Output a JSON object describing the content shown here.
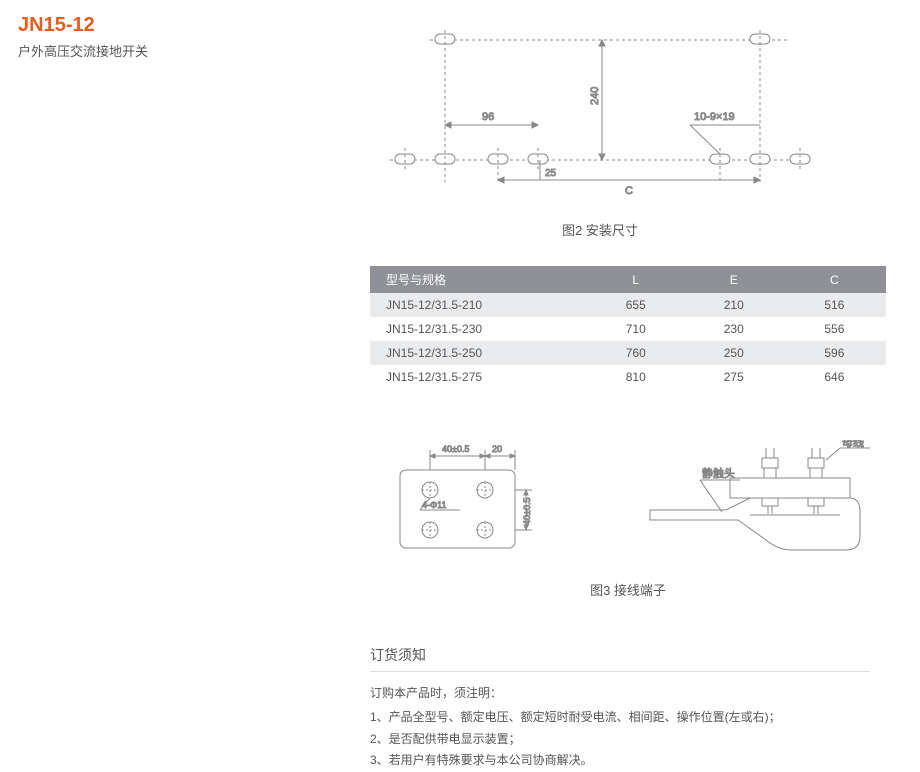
{
  "header": {
    "title": "JN15-12",
    "title_color": "#e85c1f",
    "subtitle": "户外高压交流接地开关"
  },
  "diagram2": {
    "caption": "图2 安装尺寸",
    "dim_96": "96",
    "dim_240": "240",
    "dim_25": "25",
    "dim_C": "C",
    "slot_label": "10-9×19",
    "stroke": "#888888",
    "text_color": "#666666"
  },
  "table": {
    "header_bg": "#8f9197",
    "row_alt_bg": "#eaebed",
    "row_bg": "#ffffff",
    "columns": [
      "型号与规格",
      "L",
      "E",
      "C"
    ],
    "col_widths": [
      "42%",
      "19%",
      "19%",
      "20%"
    ],
    "rows": [
      [
        "JN15-12/31.5-210",
        "655",
        "210",
        "516"
      ],
      [
        "JN15-12/31.5-230",
        "710",
        "230",
        "556"
      ],
      [
        "JN15-12/31.5-250",
        "760",
        "250",
        "596"
      ],
      [
        "JN15-12/31.5-275",
        "810",
        "275",
        "646"
      ]
    ]
  },
  "diagram3": {
    "caption": "图3 接线端子",
    "dim_40a": "40±0.5",
    "dim_20": "20",
    "dim_40b": "40±0.5",
    "hole_label": "4-Φ11",
    "label_busbar": "母线",
    "label_contact": "静触头",
    "stroke": "#888888",
    "text_color": "#666666"
  },
  "order": {
    "title": "订货须知",
    "intro": "订购本产品时，须注明：",
    "items": [
      "1、产品全型号、额定电压、额定短时耐受电流、相间距、操作位置(左或右)；",
      "2、是否配供带电显示装置；",
      "3、若用户有特殊要求与本公司协商解决。"
    ]
  }
}
